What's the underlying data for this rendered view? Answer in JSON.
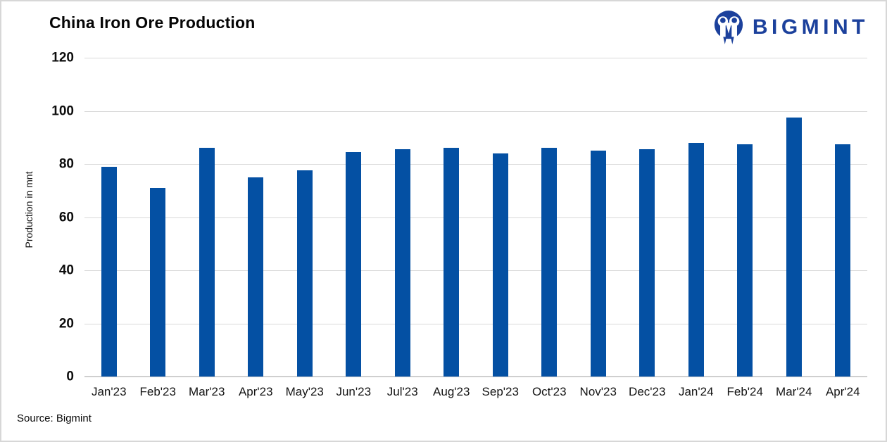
{
  "page": {
    "title": "China Iron Ore Production",
    "source_note": "Source: Bigmint"
  },
  "logo": {
    "text": "BIGMINT",
    "icon": "bigmint-mascot-icon",
    "color": "#1c419c"
  },
  "chart_data": {
    "type": "bar",
    "title": "China Iron Ore Production",
    "xlabel": "",
    "ylabel": "Production in mnt",
    "ylim": [
      0,
      120
    ],
    "yticks": [
      0,
      20,
      40,
      60,
      80,
      100,
      120
    ],
    "grid": "horizontal",
    "legend": "none",
    "bar_color": "#0450a3",
    "gridline_color": "#d9d9d9",
    "axis_line_color": "#cfcfcf",
    "categories": [
      "Jan'23",
      "Feb'23",
      "Mar'23",
      "Apr'23",
      "May'23",
      "Jun'23",
      "Jul'23",
      "Aug'23",
      "Sep'23",
      "Oct'23",
      "Nov'23",
      "Dec'23",
      "Jan'24",
      "Feb'24",
      "Mar'24",
      "Apr'24"
    ],
    "values": [
      79,
      71,
      86,
      75,
      77.5,
      84.5,
      85.5,
      86,
      84,
      86,
      85,
      85.5,
      88,
      87.5,
      97.5,
      87.5
    ],
    "source": "Source: Bigmint"
  }
}
